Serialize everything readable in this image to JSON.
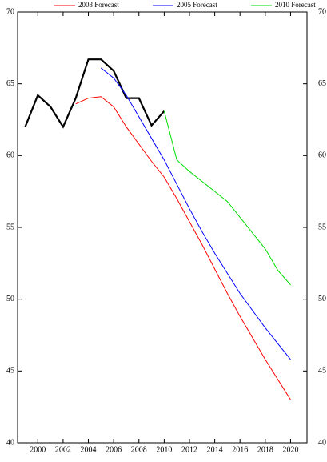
{
  "chart_data": {
    "type": "line",
    "x": [
      1999,
      2000,
      2001,
      2002,
      2003,
      2004,
      2005,
      2006,
      2007,
      2008,
      2009,
      2010,
      2011,
      2012,
      2013,
      2014,
      2015,
      2016,
      2017,
      2018,
      2019,
      2020
    ],
    "series": [
      {
        "color": "#000000",
        "values": [
          62.0,
          64.2,
          63.4,
          62.0,
          64.0,
          66.7,
          66.7,
          65.9,
          64.0,
          64.0,
          62.1,
          63.1,
          null,
          null,
          null,
          null,
          null,
          null,
          null,
          null,
          null,
          null
        ]
      },
      {
        "name": "2003 Forecast",
        "color": "#ff0000",
        "values": [
          null,
          null,
          null,
          null,
          63.6,
          64.0,
          64.1,
          63.4,
          62.0,
          60.8,
          59.6,
          58.5,
          57.0,
          55.4,
          53.8,
          52.1,
          50.4,
          48.8,
          47.3,
          45.8,
          44.4,
          43.0
        ]
      },
      {
        "name": "2005 Forecast",
        "color": "#0000ff",
        "values": [
          null,
          null,
          null,
          null,
          null,
          null,
          66.1,
          65.4,
          64.2,
          62.7,
          61.2,
          59.7,
          58.0,
          56.3,
          54.7,
          53.2,
          51.8,
          50.4,
          49.2,
          48.0,
          46.9,
          45.8
        ]
      },
      {
        "name": "2010 Forecast",
        "color": "#00dd00",
        "values": [
          null,
          null,
          null,
          null,
          null,
          null,
          null,
          null,
          null,
          null,
          null,
          63.1,
          59.7,
          58.9,
          58.2,
          57.5,
          56.8,
          55.7,
          54.6,
          53.5,
          52.0,
          51.0
        ]
      }
    ],
    "xlim": [
      1998.4,
      2021.3
    ],
    "xticks": [
      2000,
      2002,
      2004,
      2006,
      2008,
      2010,
      2012,
      2014,
      2016,
      2018,
      2020
    ],
    "ylim": [
      40,
      70
    ],
    "yticks": [
      40,
      45,
      50,
      55,
      60,
      65,
      70
    ]
  }
}
